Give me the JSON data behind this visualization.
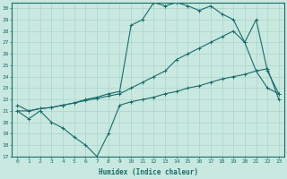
{
  "xlabel": "Humidex (Indice chaleur)",
  "xlim": [
    -0.5,
    23.5
  ],
  "ylim": [
    17,
    30.5
  ],
  "yticks": [
    17,
    18,
    19,
    20,
    21,
    22,
    23,
    24,
    25,
    26,
    27,
    28,
    29,
    30
  ],
  "xticks": [
    0,
    1,
    2,
    3,
    4,
    5,
    6,
    7,
    8,
    9,
    10,
    11,
    12,
    13,
    14,
    15,
    16,
    17,
    18,
    19,
    20,
    21,
    22,
    23
  ],
  "bg_color": "#c8e8e0",
  "line_color": "#1a6b6b",
  "grid_color": "#b0d8d0",
  "line_bottom_x": [
    0,
    1,
    2,
    3,
    4,
    5,
    6,
    7,
    8,
    9,
    10,
    11,
    12,
    13,
    14,
    15,
    16,
    17,
    18,
    19,
    20,
    21,
    22,
    23
  ],
  "line_bottom_y": [
    21.0,
    20.3,
    21.0,
    20.0,
    19.5,
    18.7,
    18.0,
    17.0,
    19.0,
    21.5,
    21.8,
    22.0,
    22.2,
    22.5,
    22.7,
    23.0,
    23.2,
    23.5,
    23.8,
    24.0,
    24.2,
    24.5,
    24.7,
    22.0
  ],
  "line_mid_x": [
    0,
    1,
    2,
    3,
    4,
    5,
    6,
    7,
    8,
    9,
    10,
    11,
    12,
    13,
    14,
    15,
    16,
    17,
    18,
    19,
    20,
    21,
    22,
    23
  ],
  "line_mid_y": [
    21.0,
    21.0,
    21.2,
    21.3,
    21.5,
    21.7,
    21.9,
    22.1,
    22.3,
    22.5,
    23.0,
    23.5,
    24.0,
    24.5,
    25.5,
    26.0,
    26.5,
    27.0,
    27.5,
    28.0,
    27.0,
    24.5,
    23.0,
    22.5
  ],
  "line_top_x": [
    0,
    1,
    2,
    3,
    4,
    5,
    6,
    7,
    8,
    9,
    10,
    11,
    12,
    13,
    14,
    15,
    16,
    17,
    18,
    19,
    20,
    21,
    22,
    23
  ],
  "line_top_y": [
    21.5,
    21.0,
    21.2,
    21.3,
    21.5,
    21.7,
    22.0,
    22.2,
    22.5,
    22.7,
    28.5,
    29.0,
    30.5,
    30.2,
    30.5,
    30.2,
    29.8,
    30.2,
    29.5,
    29.0,
    27.0,
    29.0,
    24.5,
    22.5
  ]
}
